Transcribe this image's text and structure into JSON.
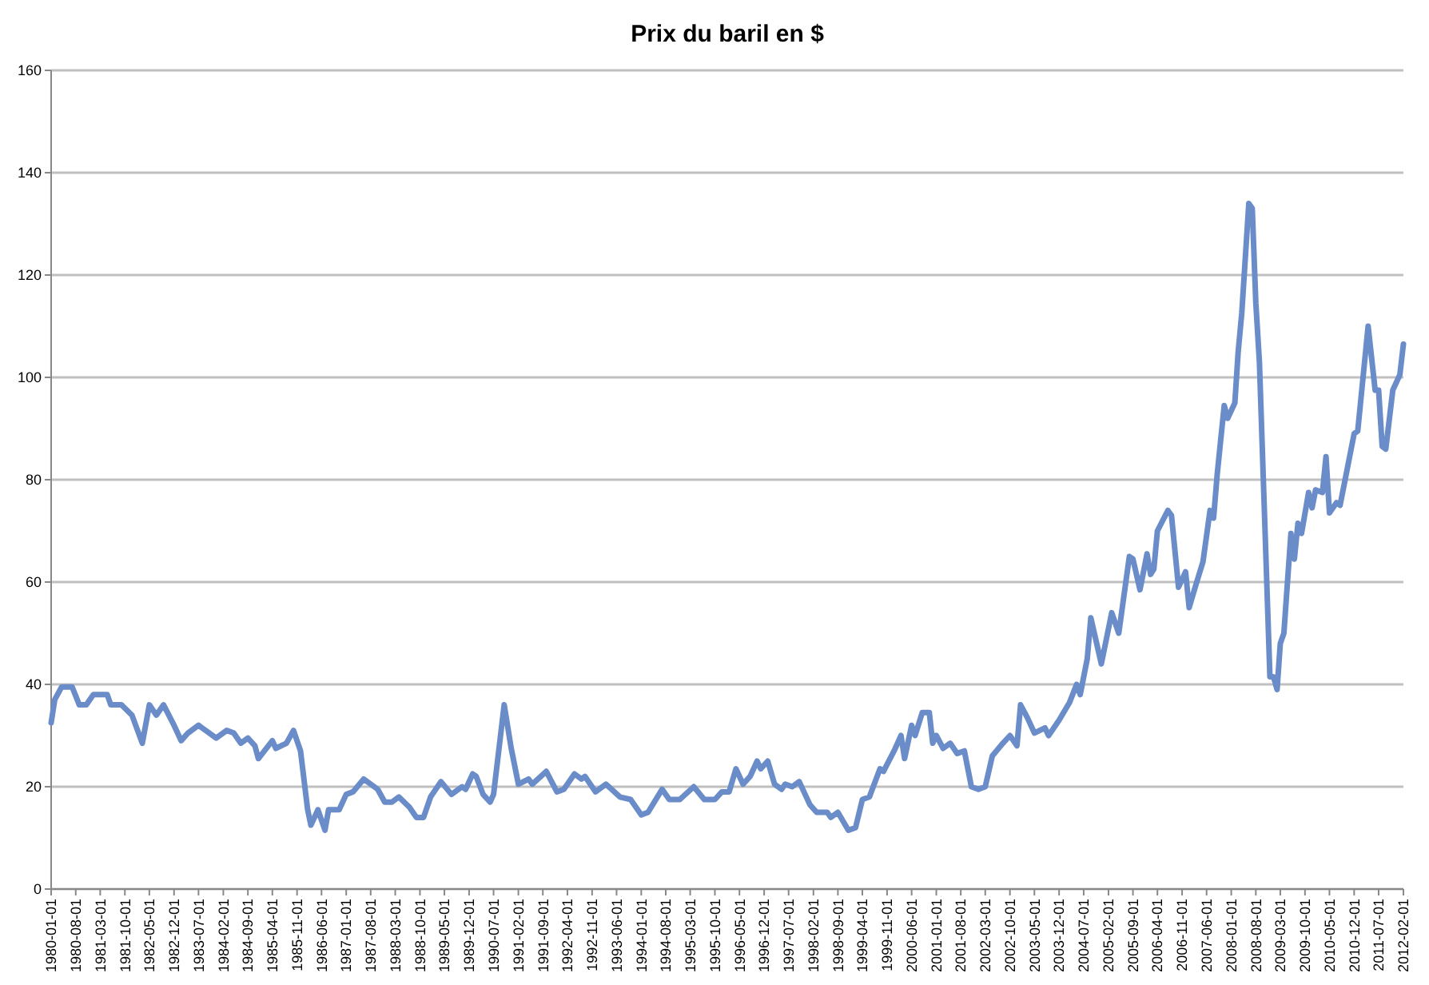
{
  "chart_data": {
    "type": "line",
    "title": "Prix du baril en $",
    "x": [
      "1980-01",
      "1980-02",
      "1980-04",
      "1980-07",
      "1980-09",
      "1980-11",
      "1981-01",
      "1981-05",
      "1981-06",
      "1981-09",
      "1981-12",
      "1982-03",
      "1982-05",
      "1982-07",
      "1982-09",
      "1982-12",
      "1983-02",
      "1983-04",
      "1983-07",
      "1983-12",
      "1984-03",
      "1984-05",
      "1984-07",
      "1984-09",
      "1984-11",
      "1984-12",
      "1985-04",
      "1985-05",
      "1985-08",
      "1985-10",
      "1985-12",
      "1986-02",
      "1986-03",
      "1986-05",
      "1986-07",
      "1986-08",
      "1986-11",
      "1987-01",
      "1987-03",
      "1987-06",
      "1987-09",
      "1987-10",
      "1987-12",
      "1988-02",
      "1988-04",
      "1988-07",
      "1988-09",
      "1988-11",
      "1989-01",
      "1989-04",
      "1989-07",
      "1989-10",
      "1989-11",
      "1990-01",
      "1990-02",
      "1990-04",
      "1990-06",
      "1990-07",
      "1990-10",
      "1990-12",
      "1991-02",
      "1991-05",
      "1991-06",
      "1991-10",
      "1992-01",
      "1992-03",
      "1992-06",
      "1992-08",
      "1992-09",
      "1992-12",
      "1993-03",
      "1993-07",
      "1993-10",
      "1994-01",
      "1994-03",
      "1994-07",
      "1994-09",
      "1994-12",
      "1995-04",
      "1995-07",
      "1995-10",
      "1995-12",
      "1996-02",
      "1996-04",
      "1996-06",
      "1996-08",
      "1996-10",
      "1996-11",
      "1997-01",
      "1997-03",
      "1997-05",
      "1997-06",
      "1997-08",
      "1997-10",
      "1998-01",
      "1998-03",
      "1998-06",
      "1998-07",
      "1998-09",
      "1998-12",
      "1999-02",
      "1999-04",
      "1999-06",
      "1999-09",
      "1999-10",
      "2000-01",
      "2000-03",
      "2000-04",
      "2000-06",
      "2000-07",
      "2000-09",
      "2000-11",
      "2000-12",
      "2001-01",
      "2001-03",
      "2001-05",
      "2001-07",
      "2001-09",
      "2001-11",
      "2002-01",
      "2002-03",
      "2002-05",
      "2002-08",
      "2002-10",
      "2002-12",
      "2003-01",
      "2003-03",
      "2003-05",
      "2003-08",
      "2003-09",
      "2003-12",
      "2004-03",
      "2004-05",
      "2004-06",
      "2004-08",
      "2004-09",
      "2004-12",
      "2005-03",
      "2005-05",
      "2005-08",
      "2005-09",
      "2005-11",
      "2006-01",
      "2006-02",
      "2006-03",
      "2006-04",
      "2006-07",
      "2006-08",
      "2006-10",
      "2006-12",
      "2007-01",
      "2007-03",
      "2007-05",
      "2007-07",
      "2007-08",
      "2007-09",
      "2007-11",
      "2007-12",
      "2008-02",
      "2008-03",
      "2008-04",
      "2008-06",
      "2008-07",
      "2008-08",
      "2008-09",
      "2008-12",
      "2009-01",
      "2009-02",
      "2009-03",
      "2009-04",
      "2009-06",
      "2009-07",
      "2009-08",
      "2009-09",
      "2009-11",
      "2009-12",
      "2010-01",
      "2010-03",
      "2010-04",
      "2010-05",
      "2010-07",
      "2010-08",
      "2010-10",
      "2010-12",
      "2011-01",
      "2011-04",
      "2011-06",
      "2011-07",
      "2011-08",
      "2011-09",
      "2011-11",
      "2012-01",
      "2012-02"
    ],
    "values": [
      32.5,
      37,
      39.5,
      39.5,
      36,
      36,
      38,
      38,
      36,
      36,
      34,
      28.5,
      36,
      34,
      36,
      32,
      29,
      30.5,
      32,
      29.5,
      31,
      30.5,
      28.5,
      29.5,
      28,
      25.5,
      29,
      27.5,
      28.5,
      31,
      27,
      15.5,
      12.5,
      15.5,
      11.5,
      15.5,
      15.5,
      18.5,
      19,
      21.5,
      20,
      19.5,
      17,
      17,
      18,
      16,
      14,
      14,
      18,
      21,
      18.5,
      20,
      19.5,
      22.5,
      22,
      18.5,
      17,
      18.5,
      36,
      27.5,
      20.5,
      21.5,
      20.5,
      23,
      19,
      19.5,
      22.5,
      21.5,
      22,
      19,
      20.5,
      18,
      17.5,
      14.5,
      15,
      19.5,
      17.5,
      17.5,
      20,
      17.5,
      17.5,
      19,
      19,
      23.5,
      20.5,
      22,
      25,
      23.5,
      25,
      20.5,
      19.5,
      20.5,
      20,
      21,
      16.5,
      15,
      15,
      14,
      15,
      11.5,
      12,
      17.5,
      18,
      23.5,
      23,
      27,
      30,
      25.5,
      32,
      30,
      34.5,
      34.5,
      28.5,
      30,
      27.5,
      28.5,
      26.5,
      27,
      20,
      19.5,
      20,
      26,
      28.5,
      30,
      28,
      36,
      33.5,
      30.5,
      31.5,
      30,
      33,
      36.5,
      40,
      38,
      45,
      53,
      44,
      54,
      50,
      65,
      64.5,
      58.5,
      65.5,
      61.5,
      62.5,
      70,
      74,
      73,
      59,
      62,
      55,
      59.5,
      64,
      74,
      72.5,
      81,
      94.5,
      92,
      95,
      105,
      112.5,
      134,
      133,
      114.5,
      103,
      41.5,
      41.5,
      39,
      48,
      50,
      69.5,
      64.5,
      71.5,
      69.5,
      77.5,
      74.5,
      78,
      77.5,
      84.5,
      73.5,
      75.5,
      75,
      82,
      89,
      89.5,
      110,
      97.5,
      97.5,
      86.5,
      86,
      97.5,
      100.5,
      106.5
    ],
    "color": "#6a8cc8",
    "xlim": [
      "1980-01",
      "2012-02"
    ],
    "xticks": [
      "1980-01-01",
      "1980-08-01",
      "1981-03-01",
      "1981-10-01",
      "1982-05-01",
      "1982-12-01",
      "1983-07-01",
      "1984-02-01",
      "1984-09-01",
      "1985-04-01",
      "1985-11-01",
      "1986-06-01",
      "1987-01-01",
      "1987-08-01",
      "1988-03-01",
      "1988-10-01",
      "1989-05-01",
      "1989-12-01",
      "1990-07-01",
      "1991-02-01",
      "1991-09-01",
      "1992-04-01",
      "1992-11-01",
      "1993-06-01",
      "1994-01-01",
      "1994-08-01",
      "1995-03-01",
      "1995-10-01",
      "1996-05-01",
      "1996-12-01",
      "1997-07-01",
      "1998-02-01",
      "1998-09-01",
      "1999-04-01",
      "1999-11-01",
      "2000-06-01",
      "2001-01-01",
      "2001-08-01",
      "2002-03-01",
      "2002-10-01",
      "2003-05-01",
      "2003-12-01",
      "2004-07-01",
      "2005-02-01",
      "2005-09-01",
      "2006-04-01",
      "2006-11-01",
      "2007-06-01",
      "2008-01-01",
      "2008-08-01",
      "2009-03-01",
      "2009-10-01",
      "2010-05-01",
      "2010-12-01",
      "2011-07-01",
      "2012-02-01"
    ],
    "ylim": [
      0,
      160
    ],
    "yticks": [
      0,
      20,
      40,
      60,
      80,
      100,
      120,
      140,
      160
    ],
    "grid": "y"
  }
}
